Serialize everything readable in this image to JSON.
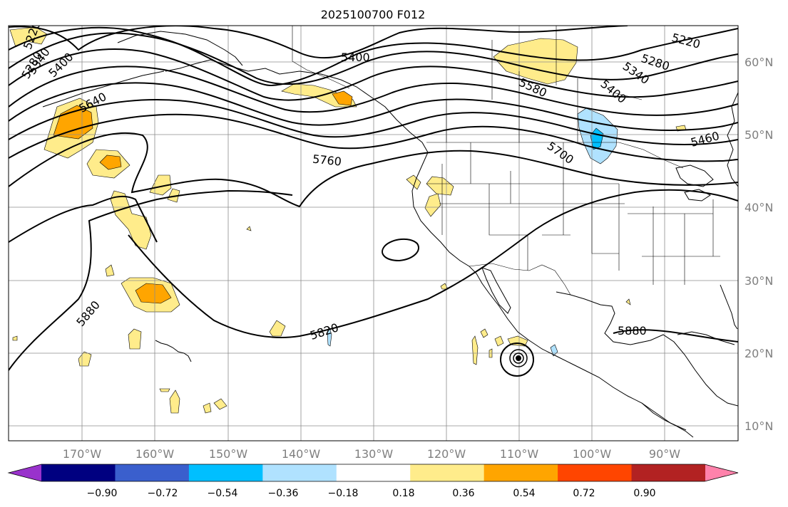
{
  "title": "2025100700 F012",
  "lon_labels": [
    "170°W",
    "160°W",
    "150°W",
    "140°W",
    "130°W",
    "120°W",
    "110°W",
    "100°W",
    "90°W"
  ],
  "lat_labels": [
    "60°N",
    "50°N",
    "40°N",
    "30°N",
    "20°N",
    "10°N"
  ],
  "contour_labels": [
    "5400",
    "5220",
    "5280",
    "5340",
    "5400",
    "5460",
    "5580",
    "5640",
    "5700",
    "5760",
    "5820",
    "5880",
    "5880",
    "5220",
    "5280",
    "5340",
    "5400"
  ],
  "colorbar": {
    "colors": [
      "#9932cc",
      "#000080",
      "#3a5fcd",
      "#00bfff",
      "#b0e2ff",
      "#ffffff",
      "#ffec8b",
      "#ffa500",
      "#ff4500",
      "#b22222",
      "#ff82ab"
    ],
    "ticks": [
      "−0.90",
      "−0.72",
      "−0.54",
      "−0.36",
      "−0.18",
      "0.18",
      "0.36",
      "0.54",
      "0.72",
      "0.90"
    ]
  }
}
